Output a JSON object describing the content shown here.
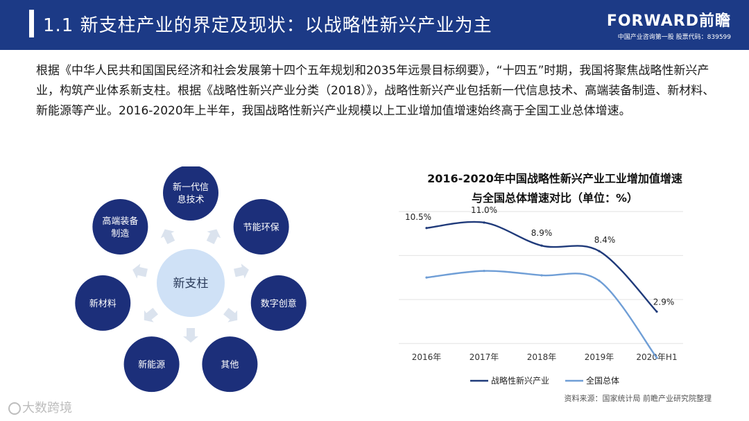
{
  "header": {
    "title": "1.1 新支柱产业的界定及现状：以战略性新兴产业为主",
    "logo_brand": "FORWARD前瞻",
    "logo_sub": "中国产业咨询第一股  股票代码：839599"
  },
  "paragraph": "根据《中华人民共和国国民经济和社会发展第十四个五年规划和2035年远景目标纲要》，“十四五”时期，我国将聚焦战略性新兴产业，构筑产业体系新支柱。根据《战略性新兴产业分类（2018）》，战略性新兴产业包括新一代信息技术、高端装备制造、新材料、新能源等产业。2016-2020年上半年，我国战略性新兴产业规模以上工业增加值增速始终高于全国工业总体增速。",
  "diagram": {
    "center": "新支柱",
    "nodes": [
      {
        "label": "新一代信\n息技术"
      },
      {
        "label": "节能环保"
      },
      {
        "label": "数字创意"
      },
      {
        "label": "其他"
      },
      {
        "label": "新能源"
      },
      {
        "label": "新材料"
      },
      {
        "label": "高端装备\n制造"
      }
    ]
  },
  "chart_data": {
    "type": "line",
    "title": "2016-2020年中国战略性新兴产业工业增加值增速\n与全国总体增速对比（单位：%）",
    "categories": [
      "2016年",
      "2017年",
      "2018年",
      "2019年",
      "2020年H1"
    ],
    "series": [
      {
        "name": "战略性新兴产业",
        "values": [
          10.5,
          11.0,
          8.9,
          8.4,
          2.9
        ],
        "labels": [
          "10.5%",
          "11.0%",
          "8.9%",
          "8.4%",
          "2.9%"
        ],
        "color": "#1f3a7a"
      },
      {
        "name": "全国总体",
        "values": [
          6.0,
          6.6,
          6.2,
          5.7,
          -1.3
        ],
        "color": "#6f9ed6"
      }
    ],
    "ylim": [
      -2,
      12
    ],
    "grid": true,
    "legend": "bottom"
  },
  "source": "资料来源：国家统计局  前瞻产业研究院整理",
  "watermark": "大数跨境",
  "colors": {
    "header": "#1c3a86",
    "node": "#1c2f7a",
    "center": "#cfe1f6"
  }
}
